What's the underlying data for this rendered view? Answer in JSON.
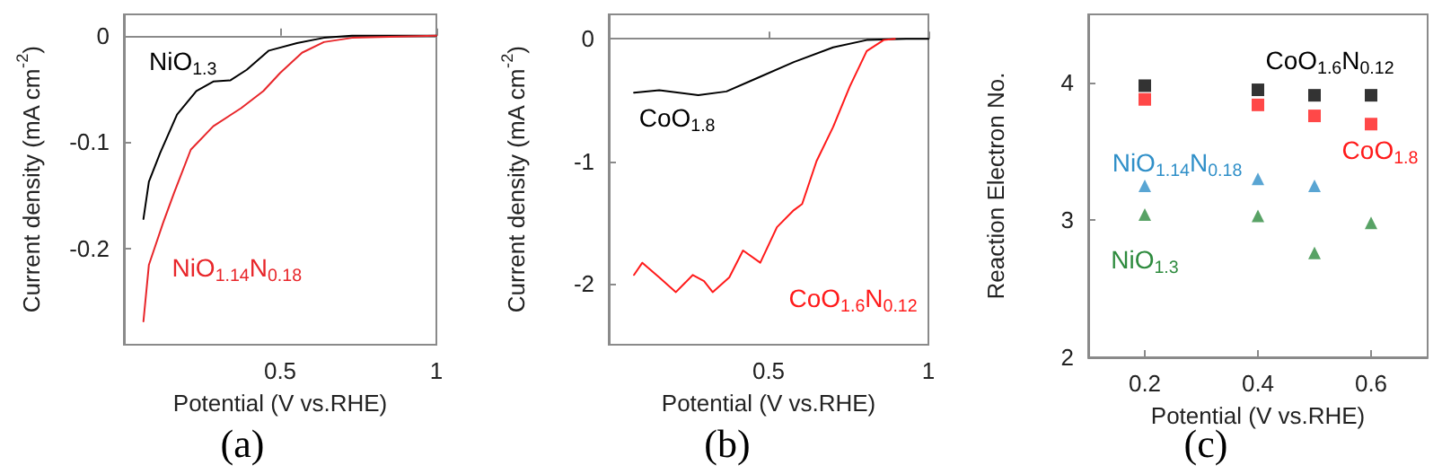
{
  "chart_data": [
    {
      "type": "line",
      "xlabel": "Potential (V vs.RHE)",
      "ylabel": "Current density (mA cm$^{-2}$)",
      "xlim": [
        0,
        1
      ],
      "xticks": [
        0.5,
        1
      ],
      "ylim": [
        -0.29,
        0.02
      ],
      "yticks": [
        0,
        -0.1,
        -0.2
      ],
      "marker": "none",
      "line_style": "solid",
      "series": [
        {
          "name": "NiO$_{1.3}$",
          "color": "#000000",
          "x": [
            0.0625,
            0.08,
            0.116,
            0.17,
            0.232,
            0.286,
            0.34,
            0.393,
            0.464,
            0.554,
            0.64,
            0.73,
            1
          ],
          "values": [
            -0.172,
            -0.137,
            -0.11,
            -0.074,
            -0.052,
            -0.043,
            -0.042,
            -0.032,
            -0.014,
            -0.007,
            -0.002,
            0,
            0
          ]
        },
        {
          "name": "NiO$_{1.14}$N$_{0.18}$",
          "color": "#e8262a",
          "x": [
            0.0625,
            0.08,
            0.125,
            0.16,
            0.214,
            0.286,
            0.375,
            0.446,
            0.5,
            0.57,
            0.64,
            0.73,
            1
          ],
          "values": [
            -0.268,
            -0.215,
            -0.176,
            -0.148,
            -0.107,
            -0.085,
            -0.068,
            -0.052,
            -0.035,
            -0.016,
            -0.006,
            -0.002,
            0
          ]
        }
      ],
      "annotations": [
        "(a)"
      ]
    },
    {
      "type": "line",
      "xlabel": "Potential (V vs.RHE)",
      "ylabel": "Current density (mA cm$^{-2}$)",
      "xlim": [
        0,
        1
      ],
      "xticks": [
        0.5,
        1
      ],
      "ylim": [
        -2.5,
        0.2
      ],
      "yticks": [
        0,
        -1,
        -2
      ],
      "marker": "none",
      "line_style": "solid",
      "series": [
        {
          "name": "CoO$_{1.8}$",
          "color": "#000000",
          "x": [
            0.079,
            0.158,
            0.28,
            0.368,
            0.456,
            0.579,
            0.702,
            0.807,
            0.93,
            1
          ],
          "values": [
            -0.44,
            -0.42,
            -0.46,
            -0.43,
            -0.33,
            -0.19,
            -0.07,
            -0.01,
            0,
            0
          ]
        },
        {
          "name": "CoO$_{1.6}$N$_{0.12}$",
          "color": "#ff1a1a",
          "x": [
            0.079,
            0.105,
            0.158,
            0.21,
            0.263,
            0.298,
            0.325,
            0.377,
            0.42,
            0.474,
            0.526,
            0.579,
            0.605,
            0.65,
            0.702,
            0.754,
            0.807,
            0.86,
            0.895
          ],
          "values": [
            -1.93,
            -1.83,
            -1.95,
            -2.07,
            -1.93,
            -1.98,
            -2.07,
            -1.95,
            -1.73,
            -1.83,
            -1.54,
            -1.4,
            -1.35,
            -1.0,
            -0.72,
            -0.39,
            -0.1,
            -0.01,
            0
          ]
        }
      ],
      "annotations": [
        "(b)"
      ]
    },
    {
      "type": "scatter",
      "xlabel": "Potential (V vs.RHE)",
      "ylabel": "Reaction Electron No.",
      "xlim": [
        0.1,
        0.7
      ],
      "xticks": [
        0.2,
        0.4,
        0.6
      ],
      "ylim": [
        2,
        4.5
      ],
      "yticks": [
        2,
        3,
        4
      ],
      "series": [
        {
          "name": "CoO$_{1.6}$N$_{0.12}$",
          "color": "#000000",
          "marker": "square",
          "x": [
            0.2,
            0.4,
            0.5,
            0.6
          ],
          "values": [
            3.98,
            3.95,
            3.91,
            3.91
          ]
        },
        {
          "name": "CoO$_{1.8}$",
          "color": "#ff1a1a",
          "marker": "square",
          "x": [
            0.2,
            0.4,
            0.5,
            0.6
          ],
          "values": [
            3.88,
            3.84,
            3.76,
            3.7
          ]
        },
        {
          "name": "NiO$_{1.14}$N$_{0.18}$",
          "color": "#2f8fc8",
          "marker": "triangle",
          "x": [
            0.2,
            0.4,
            0.5
          ],
          "values": [
            3.25,
            3.3,
            3.25
          ]
        },
        {
          "name": "NiO$_{1.3}$",
          "color": "#2e8b3e",
          "marker": "triangle",
          "x": [
            0.2,
            0.4,
            0.5,
            0.6
          ],
          "values": [
            3.04,
            3.03,
            2.76,
            2.98
          ]
        }
      ],
      "annotations": [
        "(c)"
      ]
    }
  ]
}
